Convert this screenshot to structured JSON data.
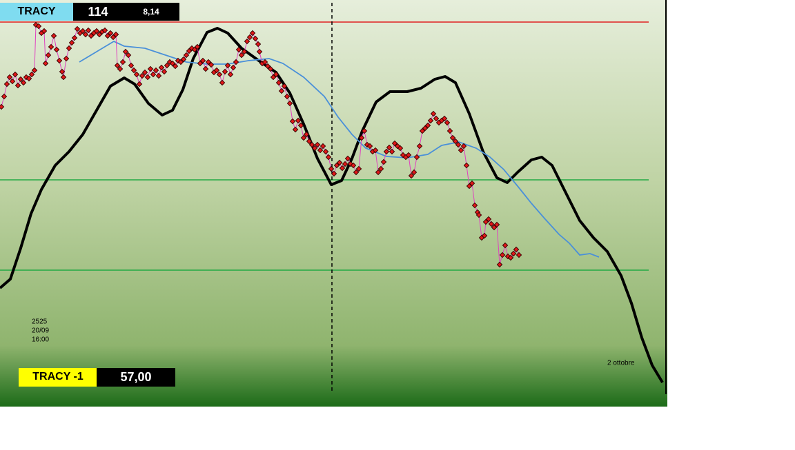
{
  "header": {
    "name": "TRACY",
    "value": "114",
    "sub": "8,14"
  },
  "stamp": {
    "id": "2525",
    "date": "20/09",
    "time": "16:00"
  },
  "footer": {
    "name": "TRACY -1",
    "value": "57,00"
  },
  "date_label": "2 ottobre"
}
